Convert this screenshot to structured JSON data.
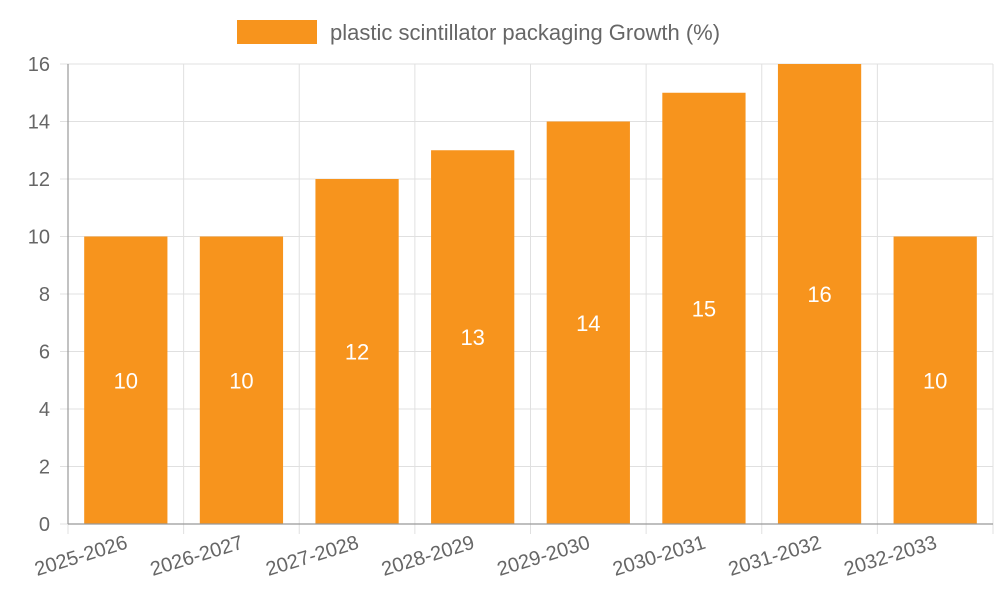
{
  "chart_data": {
    "type": "bar",
    "categories": [
      "2025-2026",
      "2026-2027",
      "2027-2028",
      "2028-2029",
      "2029-2030",
      "2030-2031",
      "2031-2032",
      "2032-2033"
    ],
    "series": [
      {
        "name": "plastic scintillator packaging Growth (%)",
        "values": [
          10,
          10,
          12,
          13,
          14,
          15,
          16,
          10
        ]
      }
    ],
    "title": "",
    "xlabel": "",
    "ylabel": "",
    "ylim": [
      0,
      16
    ],
    "yticks": [
      0,
      2,
      4,
      6,
      8,
      10,
      12,
      14,
      16
    ],
    "grid": true,
    "legend": "top",
    "data_labels": true,
    "colors": {
      "bar": "#f7941d",
      "grid": "#e0e0e0",
      "axis": "#999999",
      "text": "#666666",
      "label": "#ffffff"
    }
  }
}
